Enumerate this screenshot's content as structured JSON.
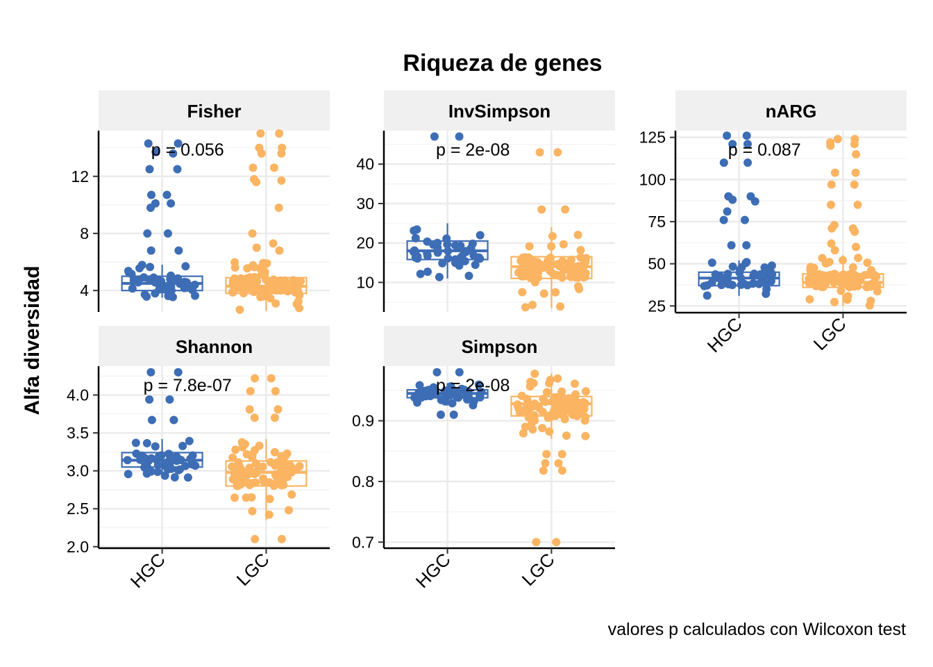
{
  "chart_data": {
    "type": "boxplot",
    "title": "Riqueza de genes",
    "ylabel": "Alfa diversidad",
    "caption": "valores p calculados con Wilcoxon test",
    "groups": [
      "HGC",
      "LGC"
    ],
    "colors": {
      "HGC": "#3d6db5",
      "LGC": "#fbb462"
    },
    "grid": true,
    "panels": [
      {
        "name": "Fisher",
        "ylim": [
          2.5,
          15.2
        ],
        "yticks": [
          4,
          8,
          12
        ],
        "pvalue": "p = 0.056",
        "boxes": {
          "HGC": {
            "q1": 4.0,
            "median": 4.5,
            "q3": 5.0,
            "whisker_low": 3.5,
            "whisker_high": 5.8
          },
          "LGC": {
            "q1": 3.8,
            "median": 4.3,
            "q3": 4.9,
            "whisker_low": 2.6,
            "whisker_high": 6.0
          }
        },
        "outliers": {
          "HGC": [
            14.3,
            14.3,
            13.7,
            13.6,
            12.5,
            12.5,
            10.7,
            10.7,
            10.1,
            10.1,
            9.8,
            8.0,
            8.0,
            6.8,
            6.8
          ],
          "LGC": [
            15.0,
            15.0,
            14.0,
            14.0,
            13.6,
            13.6,
            12.6,
            12.6,
            11.8,
            11.7,
            11.6,
            9.8,
            8.0,
            7.3,
            7.0,
            6.8
          ]
        }
      },
      {
        "name": "InvSimpson",
        "ylim": [
          2.5,
          48.5
        ],
        "yticks": [
          10,
          20,
          30,
          40
        ],
        "pvalue": "p = 2e-08",
        "boxes": {
          "HGC": {
            "q1": 15.8,
            "median": 18.0,
            "q3": 20.5,
            "whisker_low": 11.0,
            "whisker_high": 25.0
          },
          "LGC": {
            "q1": 11.0,
            "median": 14.0,
            "q3": 16.5,
            "whisker_low": 3.5,
            "whisker_high": 24.0
          }
        },
        "outliers": {
          "HGC": [
            47.0,
            47.0
          ],
          "LGC": [
            43.0,
            43.0,
            28.5,
            28.5
          ]
        }
      },
      {
        "name": "nARG",
        "ylim": [
          21.0,
          129.0
        ],
        "yticks": [
          25,
          50,
          75,
          100,
          125
        ],
        "pvalue": "p = 0.087",
        "boxes": {
          "HGC": {
            "q1": 37.0,
            "median": 41.5,
            "q3": 45.0,
            "whisker_low": 31.0,
            "whisker_high": 52.0
          },
          "LGC": {
            "q1": 36.0,
            "median": 39.0,
            "q3": 44.0,
            "whisker_low": 25.0,
            "whisker_high": 55.0
          }
        },
        "outliers": {
          "HGC": [
            126.0,
            126.0,
            121.0,
            121.0,
            110.0,
            110.0,
            90.0,
            90.0,
            88.0,
            87.0,
            81.0,
            76.0,
            76.0,
            61.0,
            61.0
          ],
          "LGC": [
            124.0,
            124.0,
            122.0,
            121.0,
            120.0,
            115.0,
            104.0,
            104.0,
            97.0,
            97.0,
            85.0,
            85.0,
            73.0,
            71.0,
            71.0,
            69.0,
            62.0,
            60.0,
            58.0
          ]
        }
      },
      {
        "name": "Shannon",
        "ylim": [
          1.98,
          4.38
        ],
        "yticks": [
          2.0,
          2.5,
          3.0,
          3.5,
          4.0
        ],
        "tick_format": "fixed1",
        "pvalue": "p = 7.8e-07",
        "boxes": {
          "HGC": {
            "q1": 3.05,
            "median": 3.14,
            "q3": 3.24,
            "whisker_low": 2.9,
            "whisker_high": 3.42
          },
          "LGC": {
            "q1": 2.8,
            "median": 2.98,
            "q3": 3.13,
            "whisker_low": 2.35,
            "whisker_high": 3.42
          }
        },
        "outliers": {
          "HGC": [
            4.3,
            4.3,
            3.94,
            3.94,
            3.67,
            3.67
          ],
          "LGC": [
            4.22,
            4.22,
            4.05,
            4.05,
            3.81,
            3.81,
            3.7,
            3.7,
            2.1,
            2.1
          ]
        }
      },
      {
        "name": "Simpson",
        "ylim": [
          0.69,
          0.99
        ],
        "yticks": [
          0.7,
          0.8,
          0.9
        ],
        "tick_format": "fixed1",
        "pvalue": "p = 2e-08",
        "boxes": {
          "HGC": {
            "q1": 0.938,
            "median": 0.945,
            "q3": 0.951,
            "whisker_low": 0.925,
            "whisker_high": 0.962
          },
          "LGC": {
            "q1": 0.908,
            "median": 0.928,
            "q3": 0.94,
            "whisker_low": 0.87,
            "whisker_high": 0.978
          }
        },
        "outliers": {
          "HGC": [
            0.98,
            0.98,
            0.91,
            0.91
          ],
          "LGC": [
            0.845,
            0.845,
            0.83,
            0.83,
            0.818,
            0.818,
            0.7,
            0.7
          ]
        }
      }
    ]
  }
}
